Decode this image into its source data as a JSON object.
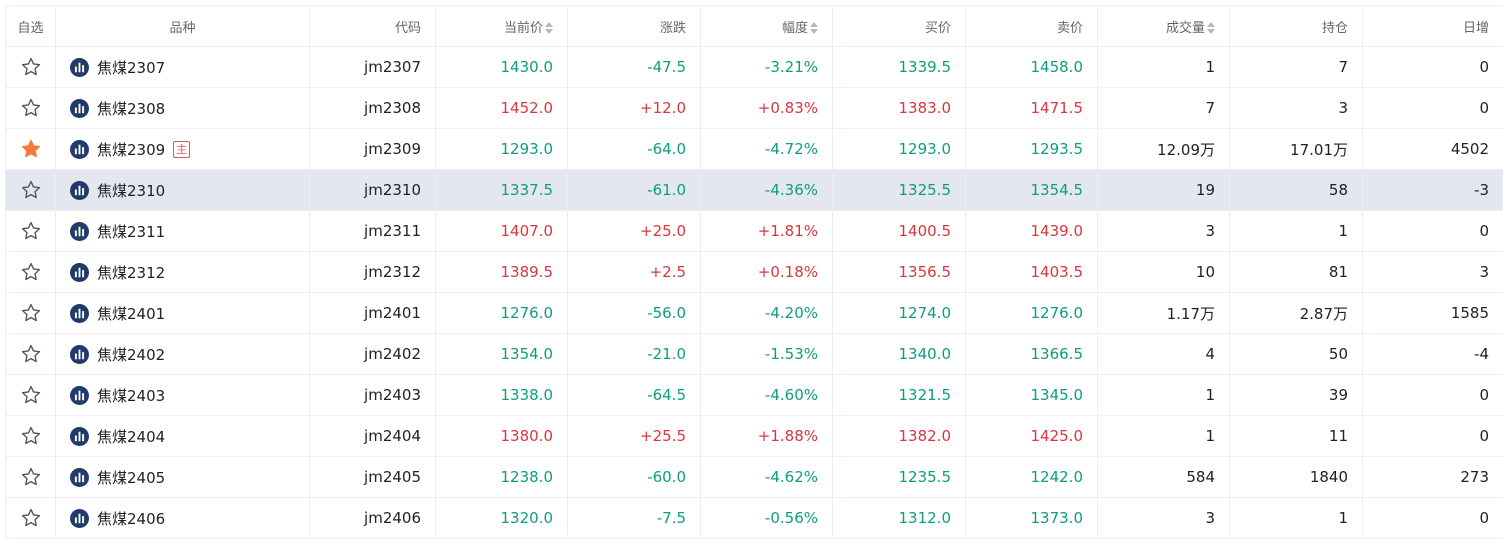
{
  "columns": {
    "fav": "自选",
    "name": "品种",
    "code": "代码",
    "price": "当前价",
    "change": "涨跌",
    "pct": "幅度",
    "bid": "买价",
    "ask": "卖价",
    "volume": "成交量",
    "oi": "持仓",
    "daily": "日增"
  },
  "colors": {
    "up": "#d9363e",
    "down": "#0e9e7c",
    "star_active": "#f57b3c",
    "highlight": "#e4e7ef"
  },
  "rows": [
    {
      "fav": false,
      "name": "焦煤2307",
      "code": "jm2307",
      "price": "1430.0",
      "change": "-47.5",
      "pct": "-3.21%",
      "bid": "1339.5",
      "ask": "1458.0",
      "volume": "1",
      "oi": "7",
      "daily": "0",
      "trend": "down",
      "badge": ""
    },
    {
      "fav": false,
      "name": "焦煤2308",
      "code": "jm2308",
      "price": "1452.0",
      "change": "+12.0",
      "pct": "+0.83%",
      "bid": "1383.0",
      "ask": "1471.5",
      "volume": "7",
      "oi": "3",
      "daily": "0",
      "trend": "up",
      "badge": ""
    },
    {
      "fav": true,
      "name": "焦煤2309",
      "code": "jm2309",
      "price": "1293.0",
      "change": "-64.0",
      "pct": "-4.72%",
      "bid": "1293.0",
      "ask": "1293.5",
      "volume": "12.09万",
      "oi": "17.01万",
      "daily": "4502",
      "trend": "down",
      "badge": "主"
    },
    {
      "fav": false,
      "name": "焦煤2310",
      "code": "jm2310",
      "price": "1337.5",
      "change": "-61.0",
      "pct": "-4.36%",
      "bid": "1325.5",
      "ask": "1354.5",
      "volume": "19",
      "oi": "58",
      "daily": "-3",
      "trend": "down",
      "badge": "",
      "highlight": true
    },
    {
      "fav": false,
      "name": "焦煤2311",
      "code": "jm2311",
      "price": "1407.0",
      "change": "+25.0",
      "pct": "+1.81%",
      "bid": "1400.5",
      "ask": "1439.0",
      "volume": "3",
      "oi": "1",
      "daily": "0",
      "trend": "up",
      "badge": ""
    },
    {
      "fav": false,
      "name": "焦煤2312",
      "code": "jm2312",
      "price": "1389.5",
      "change": "+2.5",
      "pct": "+0.18%",
      "bid": "1356.5",
      "ask": "1403.5",
      "volume": "10",
      "oi": "81",
      "daily": "3",
      "trend": "up",
      "badge": ""
    },
    {
      "fav": false,
      "name": "焦煤2401",
      "code": "jm2401",
      "price": "1276.0",
      "change": "-56.0",
      "pct": "-4.20%",
      "bid": "1274.0",
      "ask": "1276.0",
      "volume": "1.17万",
      "oi": "2.87万",
      "daily": "1585",
      "trend": "down",
      "badge": ""
    },
    {
      "fav": false,
      "name": "焦煤2402",
      "code": "jm2402",
      "price": "1354.0",
      "change": "-21.0",
      "pct": "-1.53%",
      "bid": "1340.0",
      "ask": "1366.5",
      "volume": "4",
      "oi": "50",
      "daily": "-4",
      "trend": "down",
      "badge": ""
    },
    {
      "fav": false,
      "name": "焦煤2403",
      "code": "jm2403",
      "price": "1338.0",
      "change": "-64.5",
      "pct": "-4.60%",
      "bid": "1321.5",
      "ask": "1345.0",
      "volume": "1",
      "oi": "39",
      "daily": "0",
      "trend": "down",
      "badge": ""
    },
    {
      "fav": false,
      "name": "焦煤2404",
      "code": "jm2404",
      "price": "1380.0",
      "change": "+25.5",
      "pct": "+1.88%",
      "bid": "1382.0",
      "ask": "1425.0",
      "volume": "1",
      "oi": "11",
      "daily": "0",
      "trend": "up",
      "badge": ""
    },
    {
      "fav": false,
      "name": "焦煤2405",
      "code": "jm2405",
      "price": "1238.0",
      "change": "-60.0",
      "pct": "-4.62%",
      "bid": "1235.5",
      "ask": "1242.0",
      "volume": "584",
      "oi": "1840",
      "daily": "273",
      "trend": "down",
      "badge": ""
    },
    {
      "fav": false,
      "name": "焦煤2406",
      "code": "jm2406",
      "price": "1320.0",
      "change": "-7.5",
      "pct": "-0.56%",
      "bid": "1312.0",
      "ask": "1373.0",
      "volume": "3",
      "oi": "1",
      "daily": "0",
      "trend": "down",
      "badge": ""
    }
  ]
}
